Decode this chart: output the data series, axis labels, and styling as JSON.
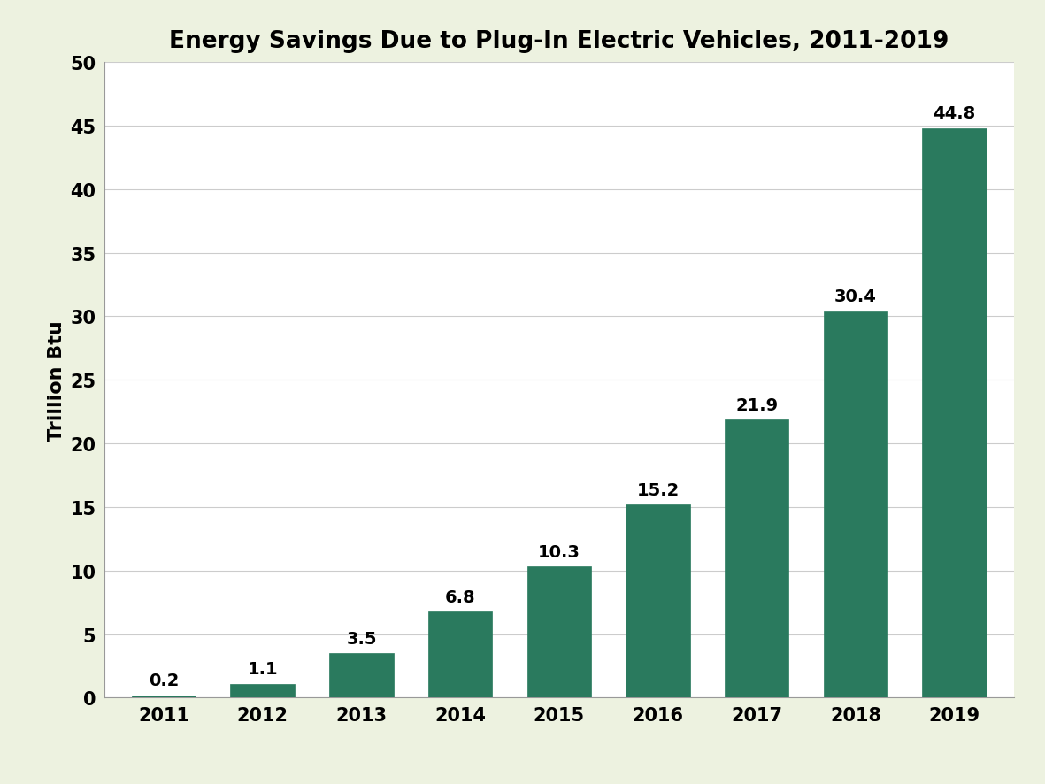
{
  "title": "Energy Savings Due to Plug-In Electric Vehicles, 2011-2019",
  "xlabel": "",
  "ylabel": "Trillion Btu",
  "years": [
    "2011",
    "2012",
    "2013",
    "2014",
    "2015",
    "2016",
    "2017",
    "2018",
    "2019"
  ],
  "values": [
    0.2,
    1.1,
    3.5,
    6.8,
    10.3,
    15.2,
    21.9,
    30.4,
    44.8
  ],
  "bar_color": "#2a7a5e",
  "background_color": "#edf2e0",
  "plot_background": "#ffffff",
  "ylim": [
    0,
    50
  ],
  "yticks": [
    0,
    5,
    10,
    15,
    20,
    25,
    30,
    35,
    40,
    45,
    50
  ],
  "title_fontsize": 19,
  "tick_fontsize": 15,
  "ylabel_fontsize": 16,
  "label_fontsize": 14,
  "grid_color": "#cccccc",
  "bar_edge_color": "#2a7a5e",
  "bar_width": 0.65
}
